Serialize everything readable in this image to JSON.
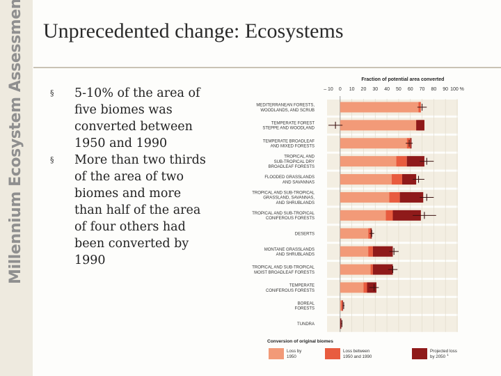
{
  "sidebar": {
    "brand_text": "Millennium Ecosystem Assessment"
  },
  "slide": {
    "title": "Unprecedented change:  Ecosystems",
    "bullets": [
      "5-10% of the area of five biomes was converted between 1950 and 1990",
      "More than two thirds of the area of two biomes and more than half of the area of four others had been converted by 1990"
    ],
    "bullet_symbol": "§"
  },
  "colors": {
    "loss_by_1950": "#f29a78",
    "loss_1950_1990": "#e85c3f",
    "projected_2050": "#8f1a1a",
    "row_band": "#f3eee2"
  },
  "chart_data": {
    "type": "bar",
    "orientation": "horizontal-stacked",
    "title": "Fraction of potential area converted",
    "x_ticks": [
      "– 10",
      "0",
      "10",
      "20",
      "30",
      "40",
      "50",
      "60",
      "70",
      "80",
      "90",
      "100 %"
    ],
    "x_tick_values": [
      -10,
      0,
      10,
      20,
      30,
      40,
      50,
      60,
      70,
      80,
      90,
      100
    ],
    "xlim": [
      -10,
      100
    ],
    "categories": [
      [
        "MEDITERRANEAN FORESTS,",
        "WOODLANDS, AND SCRUB"
      ],
      [
        "TEMPERATE FOREST",
        "STEPPE AND WOODLAND"
      ],
      [
        "TEMPERATE BROADLEAF",
        "AND MIXED FORESTS"
      ],
      [
        "TROPICAL AND",
        "SUB-TROPICAL DRY",
        "BROADLEAF FORESTS"
      ],
      [
        "FLOODED GRASSLANDS",
        "AND SAVANNAS"
      ],
      [
        "TROPICAL AND SUB-TROPICAL",
        "GRASSLAND, SAVANNAS,",
        "AND SHRUBLANDS"
      ],
      [
        "TROPICAL AND SUB-TROPICAL",
        "CONIFEROUS FORESTS"
      ],
      [
        "DESERTS"
      ],
      [
        "MONTANE GRASSLANDS",
        "AND SHRUBLANDS"
      ],
      [
        "TROPICAL AND SUB-TROPICAL",
        "MOIST BROADLEAF FORESTS"
      ],
      [
        "TEMPERATE",
        "CONIFEROUS FORESTS"
      ],
      [
        "BOREAL",
        "FORESTS"
      ],
      [
        "TUNDRA"
      ]
    ],
    "series": [
      {
        "name": "Loss by 1950",
        "values": [
          67,
          67,
          57,
          48,
          44,
          42,
          39,
          24,
          24,
          26,
          20,
          1,
          0
        ]
      },
      {
        "name": "Loss between 1950 and 1990",
        "values": [
          2,
          5,
          3,
          9,
          9,
          9,
          6,
          2,
          4,
          2,
          3,
          1,
          0
        ]
      },
      {
        "name": "Projected loss by 2050",
        "values": [
          0,
          -7,
          1,
          15,
          12,
          20,
          24,
          1,
          17,
          17,
          8,
          0.5,
          1
        ]
      }
    ],
    "error_center": [
      70,
      -4,
      59,
      74,
      67,
      74,
      72,
      27,
      46,
      45,
      29,
      3,
      1.5
    ],
    "error_half": [
      4,
      6,
      3,
      6,
      5,
      6,
      10,
      2,
      4,
      4,
      4,
      0.7,
      0.4
    ],
    "legend": {
      "title": "Conversion of original biomes",
      "position": "bottom",
      "labels": [
        [
          "Loss by",
          "1950"
        ],
        [
          "Loss between",
          "1950 and 1990"
        ],
        [
          "Projected loss",
          "by 2050",
          "1"
        ]
      ]
    }
  }
}
